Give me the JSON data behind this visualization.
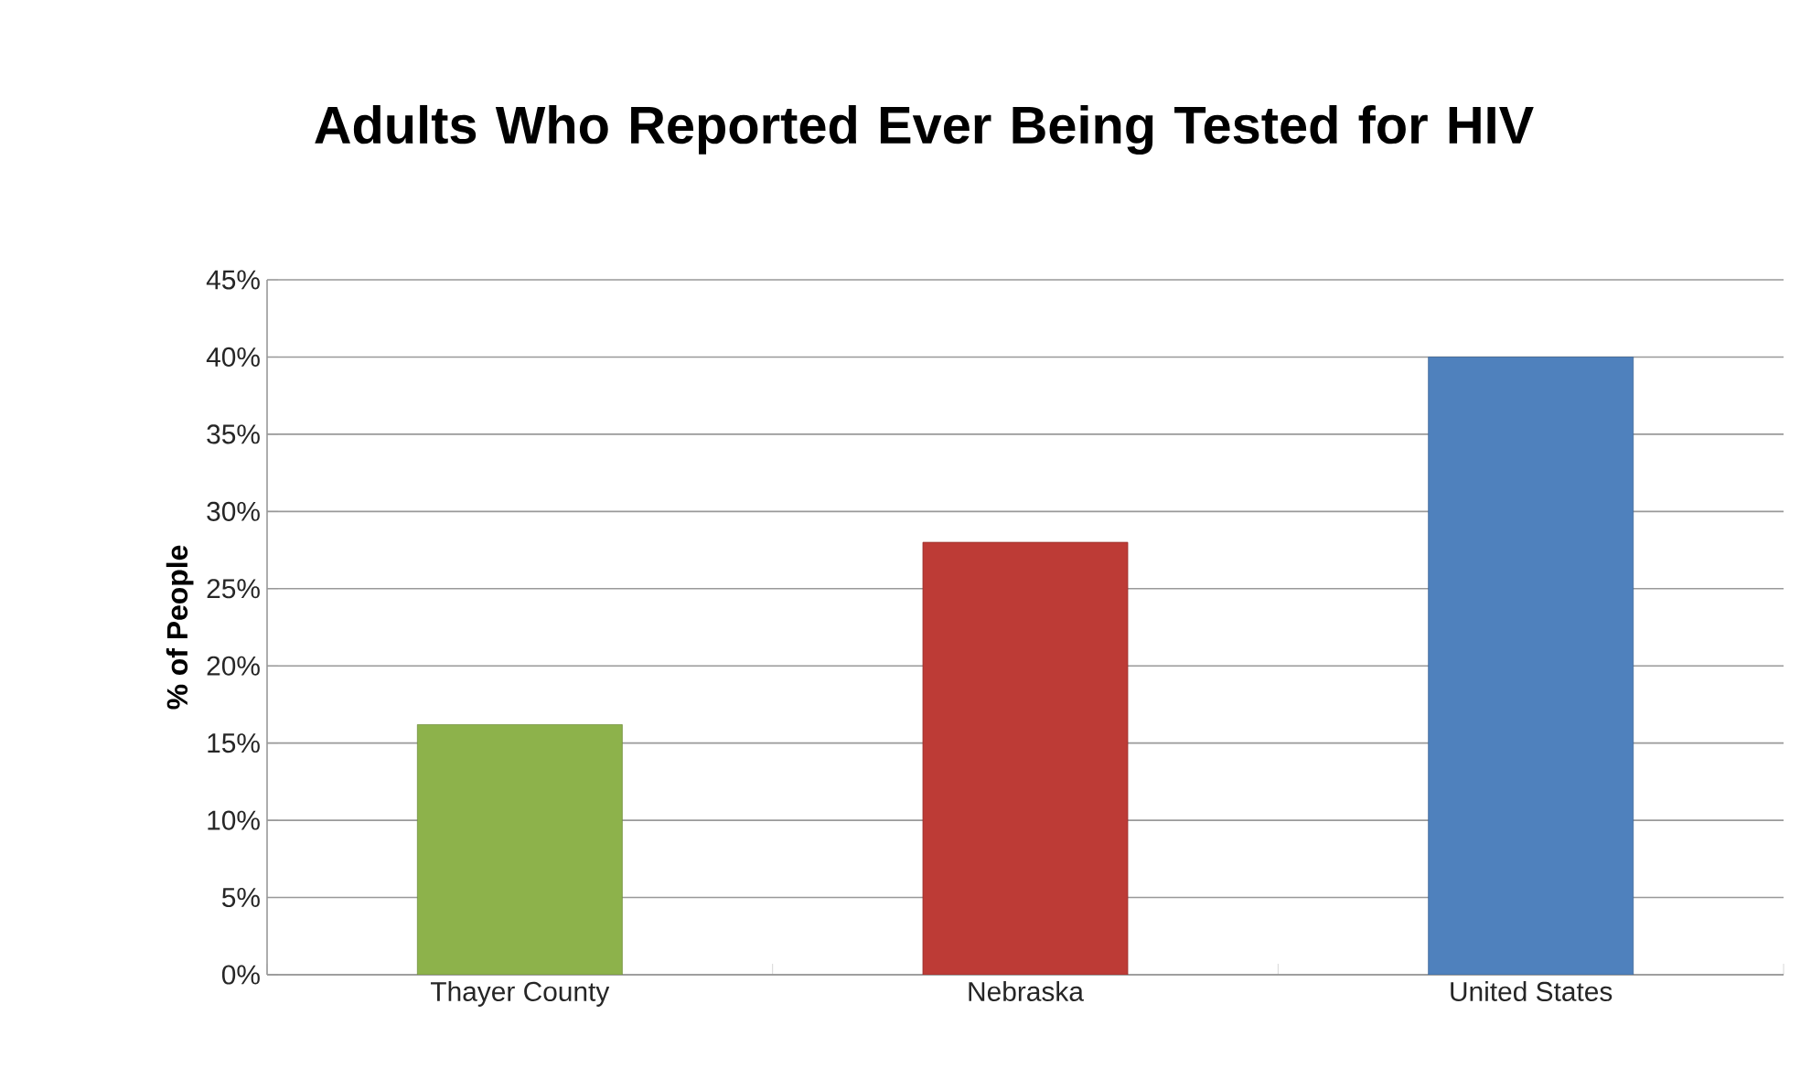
{
  "chart_data": {
    "type": "bar",
    "title": "Adults Who Reported Ever Being Tested for HIV",
    "ylabel": "% of People",
    "categories": [
      "Thayer County",
      "Nebraska",
      "United States"
    ],
    "values": [
      16.2,
      28,
      40
    ],
    "colors": [
      "#8db24b",
      "#bd3b36",
      "#4f81bd"
    ],
    "ylim": [
      0,
      45
    ],
    "yticks": [
      {
        "value": 0,
        "label": "0%"
      },
      {
        "value": 5,
        "label": "5%"
      },
      {
        "value": 10,
        "label": "10%"
      },
      {
        "value": 15,
        "label": "15%"
      },
      {
        "value": 20,
        "label": "20%"
      },
      {
        "value": 25,
        "label": "25%"
      },
      {
        "value": 30,
        "label": "30%"
      },
      {
        "value": 35,
        "label": "35%"
      },
      {
        "value": 40,
        "label": "40%"
      },
      {
        "value": 45,
        "label": "45%"
      }
    ],
    "grid": "y"
  }
}
